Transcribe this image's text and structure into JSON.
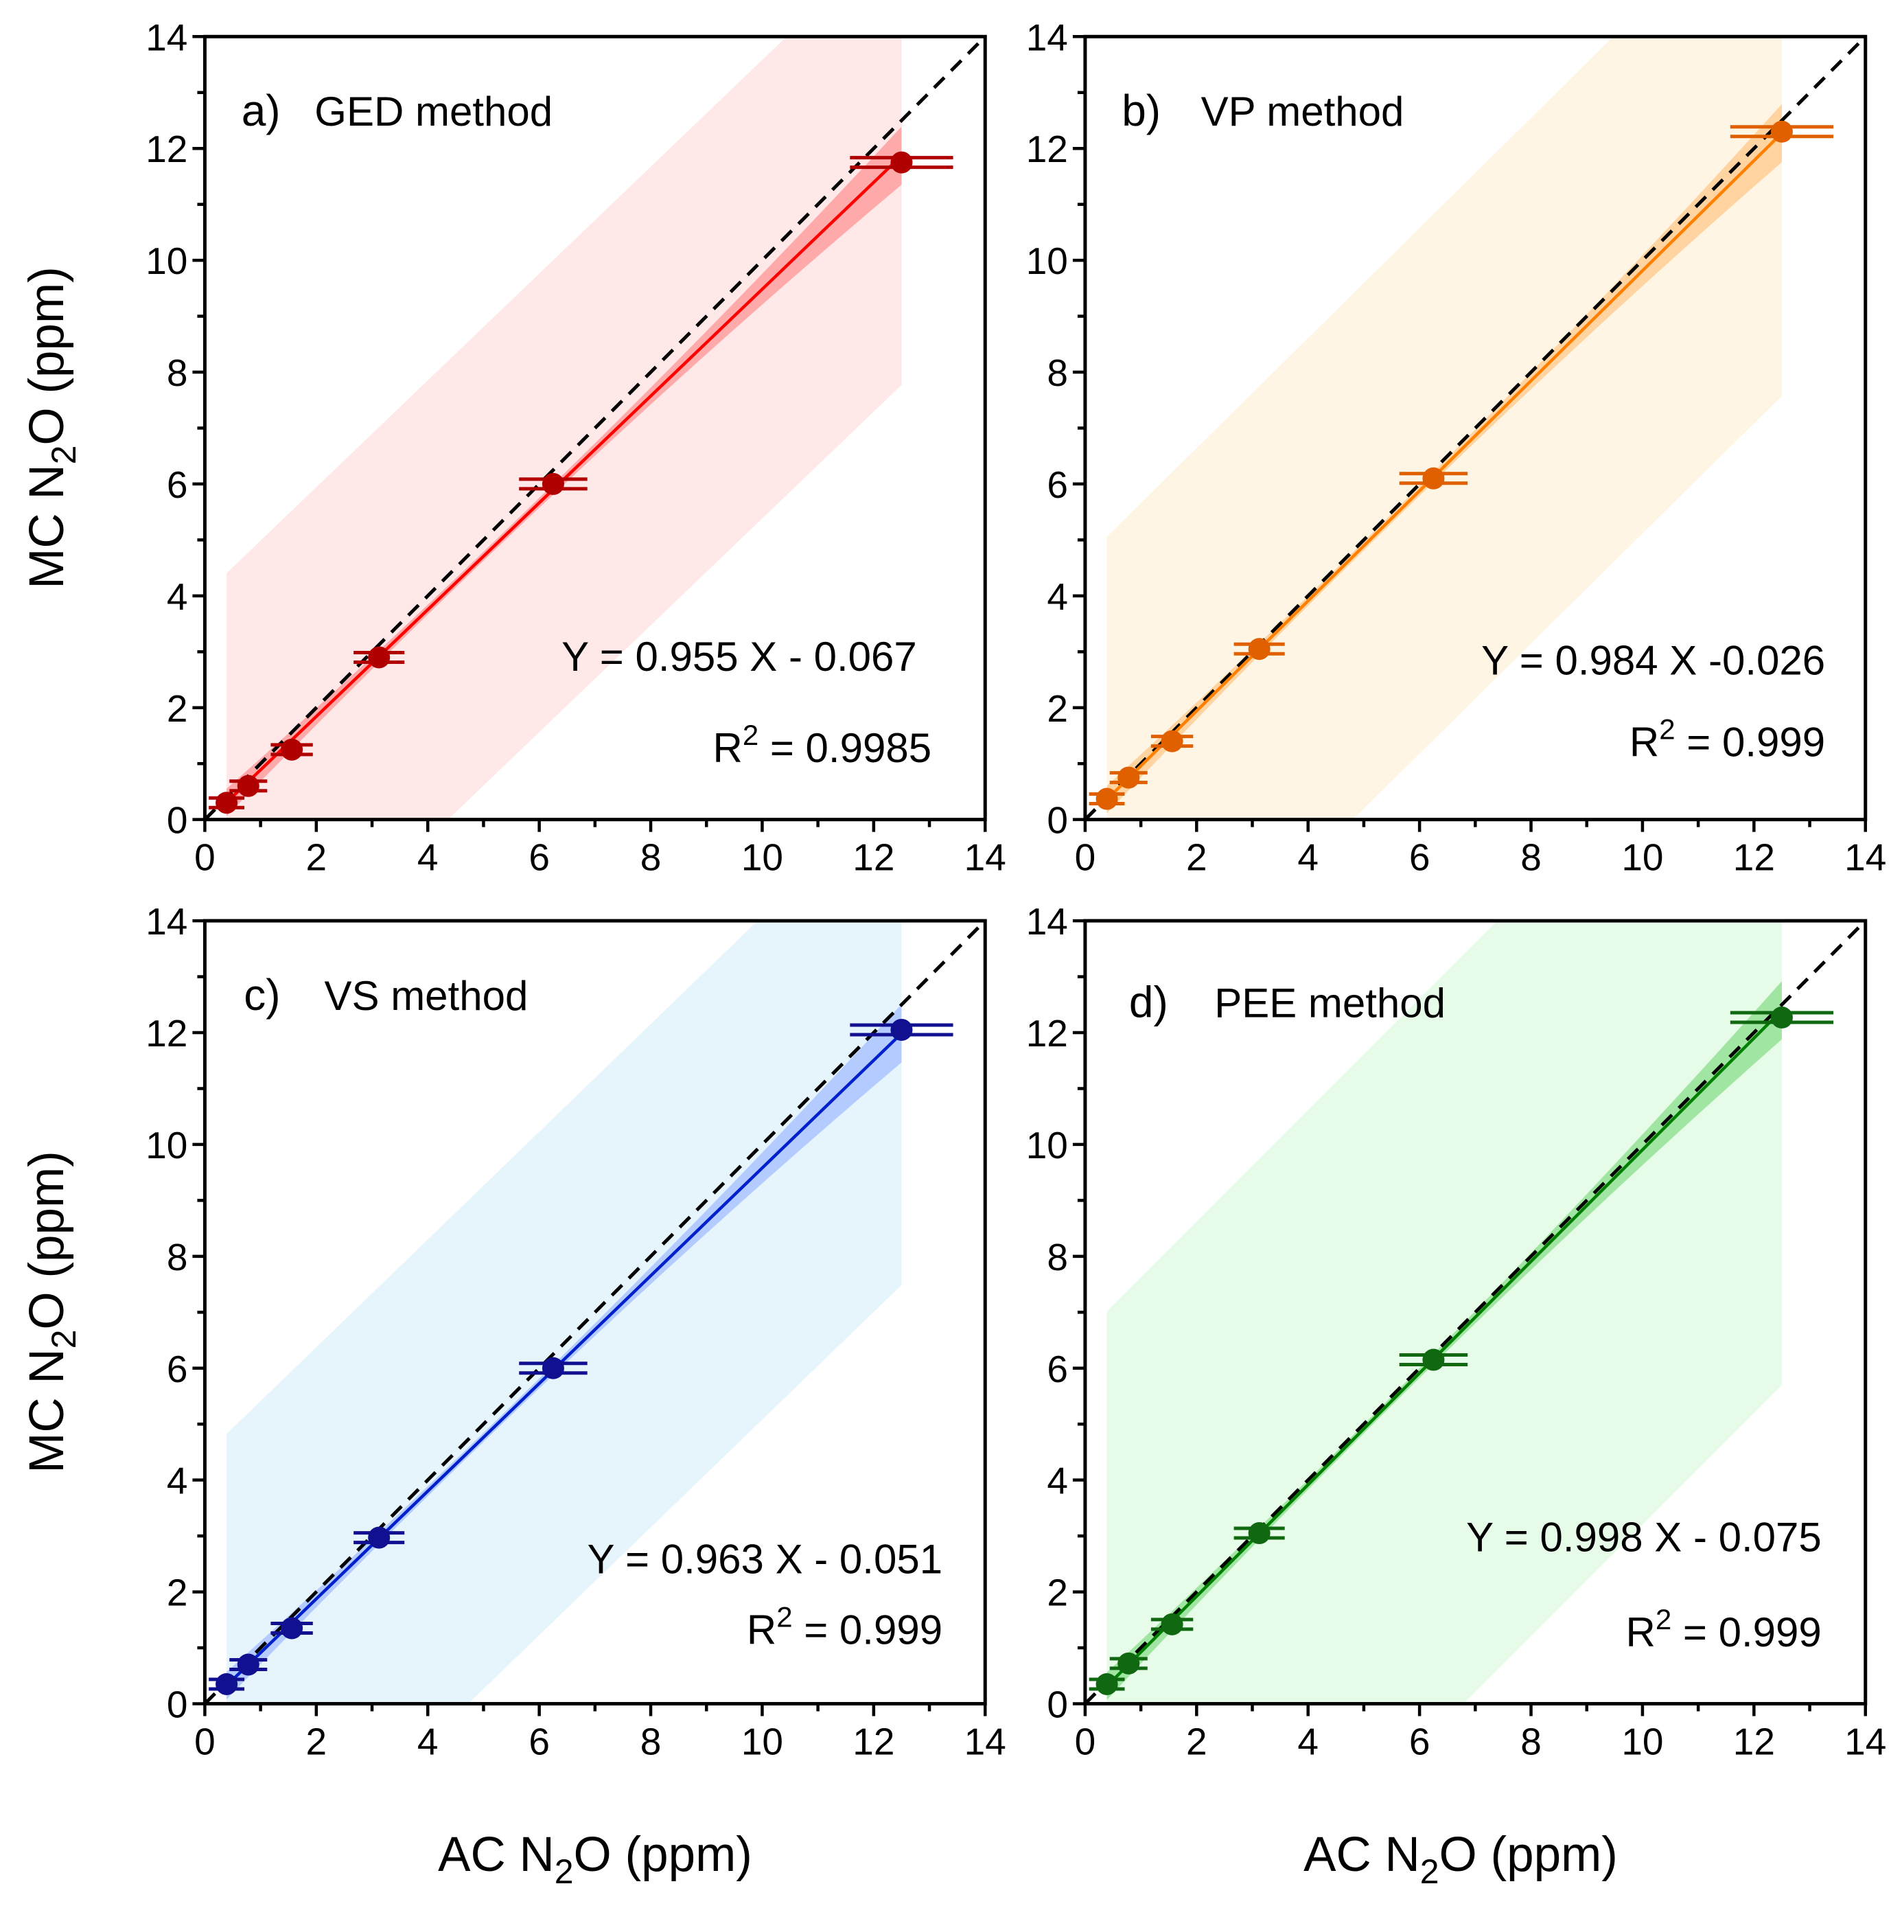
{
  "chart_data": [
    {
      "type": "scatter",
      "panel_label": "a)",
      "title": "GED method",
      "equation": "Y = 0.955 X - 0.067",
      "r2_label": "R",
      "r2_exp": "2",
      "r2_value": " = 0.9985",
      "fit": {
        "slope": 0.955,
        "intercept": -0.067
      },
      "x": [
        0.39,
        0.78,
        1.56,
        3.125,
        6.25,
        12.5
      ],
      "y": [
        0.3,
        0.6,
        1.25,
        2.9,
        6.0,
        11.75
      ],
      "prediction_band_halfwidth": 4.1,
      "xlim": [
        0,
        14
      ],
      "ylim": [
        0,
        14
      ],
      "xticks": [
        0,
        2,
        4,
        6,
        8,
        10,
        12,
        14
      ],
      "yticks": [
        0,
        2,
        4,
        6,
        8,
        10,
        12,
        14
      ],
      "colors": {
        "band": "#ffe8e8",
        "ci": "#ff9a9a",
        "line": "#ff0000",
        "points": "#b00000"
      }
    },
    {
      "type": "scatter",
      "panel_label": "b)",
      "title": "VP method",
      "equation": "Y = 0.984 X -0.026",
      "r2_label": "R",
      "r2_exp": "2",
      "r2_value": " = 0.999",
      "fit": {
        "slope": 0.984,
        "intercept": -0.026
      },
      "x": [
        0.39,
        0.78,
        1.56,
        3.125,
        6.25,
        12.5
      ],
      "y": [
        0.37,
        0.75,
        1.4,
        3.05,
        6.1,
        12.3
      ],
      "prediction_band_halfwidth": 4.7,
      "xlim": [
        0,
        14
      ],
      "ylim": [
        0,
        14
      ],
      "xticks": [
        0,
        2,
        4,
        6,
        8,
        10,
        12,
        14
      ],
      "yticks": [
        0,
        2,
        4,
        6,
        8,
        10,
        12,
        14
      ],
      "colors": {
        "band": "#fff5e4",
        "ci": "#ffcc90",
        "line": "#ff8000",
        "points": "#e06000"
      }
    },
    {
      "type": "scatter",
      "panel_label": "c)",
      "title": "VS method",
      "equation": "Y = 0.963 X - 0.051",
      "r2_label": "R",
      "r2_exp": "2",
      "r2_value": " = 0.999",
      "fit": {
        "slope": 0.963,
        "intercept": -0.051
      },
      "x": [
        0.39,
        0.78,
        1.56,
        3.125,
        6.25,
        12.5
      ],
      "y": [
        0.35,
        0.7,
        1.35,
        2.97,
        6.0,
        12.05
      ],
      "prediction_band_halfwidth": 4.5,
      "xlim": [
        0,
        14
      ],
      "ylim": [
        0,
        14
      ],
      "xticks": [
        0,
        2,
        4,
        6,
        8,
        10,
        12,
        14
      ],
      "yticks": [
        0,
        2,
        4,
        6,
        8,
        10,
        12,
        14
      ],
      "colors": {
        "band": "#e6f4fc",
        "ci": "#a8c0ff",
        "line": "#0020cc",
        "points": "#101090"
      }
    },
    {
      "type": "scatter",
      "panel_label": "d)",
      "title": "PEE method",
      "equation": "Y = 0.998 X - 0.075",
      "r2_label": "R",
      "r2_exp": "2",
      "r2_value": " = 0.999",
      "fit": {
        "slope": 0.998,
        "intercept": -0.075
      },
      "x": [
        0.39,
        0.78,
        1.56,
        3.125,
        6.25,
        12.5
      ],
      "y": [
        0.35,
        0.72,
        1.42,
        3.05,
        6.15,
        12.27
      ],
      "prediction_band_halfwidth": 6.7,
      "xlim": [
        0,
        14
      ],
      "ylim": [
        0,
        14
      ],
      "xticks": [
        0,
        2,
        4,
        6,
        8,
        10,
        12,
        14
      ],
      "yticks": [
        0,
        2,
        4,
        6,
        8,
        10,
        12,
        14
      ],
      "colors": {
        "band": "#e6fbe8",
        "ci": "#90e090",
        "line": "#008000",
        "points": "#106810"
      }
    }
  ],
  "axes": {
    "ylabel": [
      "MC N",
      "2",
      "O (ppm)"
    ],
    "xlabel": [
      "AC N",
      "2",
      "O (ppm)"
    ]
  }
}
